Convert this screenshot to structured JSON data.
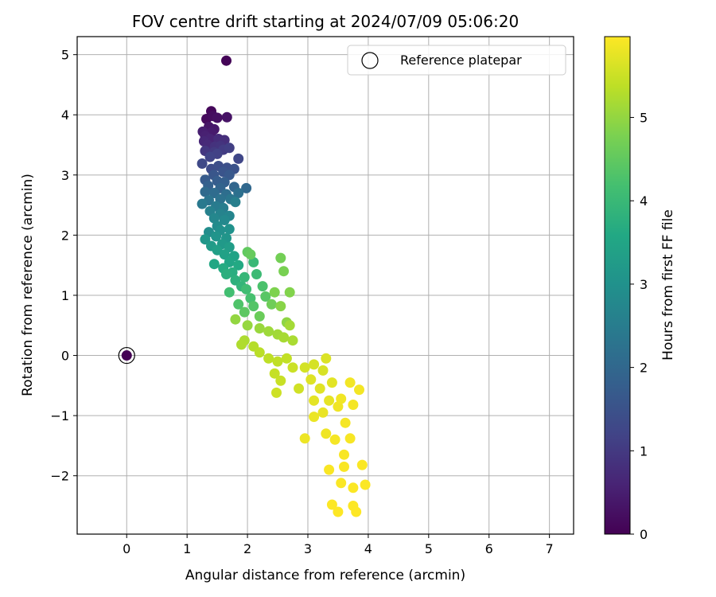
{
  "chart_data": {
    "type": "scatter",
    "title": "FOV centre drift starting at 2024/07/09 05:06:20",
    "xlabel": "Angular distance from reference (arcmin)",
    "ylabel": "Rotation from reference (arcmin)",
    "xlim": [
      -0.82,
      7.4
    ],
    "ylim": [
      -2.97,
      5.3
    ],
    "xticks": [
      0,
      1,
      2,
      3,
      4,
      5,
      6,
      7
    ],
    "yticks": [
      -2,
      -1,
      0,
      1,
      2,
      3,
      4,
      5
    ],
    "grid": true,
    "legend": {
      "position": "top-right",
      "entries": [
        "Reference platepar"
      ]
    },
    "colorbar": {
      "label": "Hours from first FF file",
      "colormap": "viridis",
      "range": [
        0,
        5.97
      ],
      "ticks": [
        0,
        1,
        2,
        3,
        4,
        5
      ]
    },
    "reference_point": {
      "x": 0,
      "y": 0,
      "hours": 0
    },
    "points": [
      [
        1.65,
        4.9,
        0.05
      ],
      [
        1.4,
        4.06,
        0.1
      ],
      [
        1.32,
        3.93,
        0.15
      ],
      [
        1.43,
        3.98,
        0.2
      ],
      [
        1.5,
        3.95,
        0.25
      ],
      [
        1.66,
        3.96,
        0.3
      ],
      [
        1.36,
        3.8,
        0.35
      ],
      [
        1.45,
        3.76,
        0.4
      ],
      [
        1.4,
        3.7,
        0.45
      ],
      [
        1.26,
        3.72,
        0.5
      ],
      [
        1.3,
        3.65,
        0.55
      ],
      [
        1.38,
        3.6,
        0.6
      ],
      [
        1.28,
        3.56,
        0.65
      ],
      [
        1.34,
        3.5,
        0.7
      ],
      [
        1.52,
        3.6,
        0.75
      ],
      [
        1.62,
        3.58,
        0.8
      ],
      [
        1.46,
        3.47,
        0.85
      ],
      [
        1.55,
        3.48,
        0.9
      ],
      [
        1.3,
        3.4,
        0.95
      ],
      [
        1.45,
        3.38,
        1.0
      ],
      [
        1.6,
        3.42,
        1.05
      ],
      [
        1.7,
        3.45,
        1.1
      ],
      [
        1.5,
        3.35,
        1.15
      ],
      [
        1.38,
        3.3,
        1.2
      ],
      [
        1.85,
        3.27,
        1.25
      ],
      [
        1.25,
        3.19,
        1.3
      ],
      [
        1.4,
        3.1,
        1.35
      ],
      [
        1.52,
        3.15,
        1.4
      ],
      [
        1.66,
        3.12,
        1.45
      ],
      [
        1.78,
        3.1,
        1.5
      ],
      [
        1.6,
        3.05,
        1.55
      ],
      [
        1.44,
        3.0,
        1.6
      ],
      [
        1.7,
        3.0,
        1.65
      ],
      [
        1.3,
        2.92,
        1.7
      ],
      [
        1.5,
        2.9,
        1.75
      ],
      [
        1.62,
        2.88,
        1.8
      ],
      [
        1.35,
        2.82,
        1.85
      ],
      [
        1.55,
        2.78,
        1.9
      ],
      [
        1.78,
        2.8,
        1.95
      ],
      [
        1.98,
        2.78,
        2.0
      ],
      [
        1.3,
        2.72,
        2.05
      ],
      [
        1.45,
        2.7,
        2.1
      ],
      [
        1.65,
        2.68,
        2.15
      ],
      [
        1.85,
        2.7,
        2.2
      ],
      [
        1.55,
        2.6,
        2.25
      ],
      [
        1.36,
        2.58,
        2.3
      ],
      [
        1.72,
        2.6,
        2.35
      ],
      [
        1.25,
        2.52,
        2.4
      ],
      [
        1.48,
        2.48,
        2.45
      ],
      [
        1.6,
        2.45,
        2.5
      ],
      [
        1.8,
        2.55,
        2.55
      ],
      [
        1.38,
        2.4,
        2.6
      ],
      [
        1.55,
        2.35,
        2.65
      ],
      [
        1.7,
        2.32,
        2.7
      ],
      [
        1.45,
        2.28,
        2.75
      ],
      [
        1.62,
        2.25,
        2.8
      ],
      [
        1.5,
        2.15,
        2.85
      ],
      [
        1.36,
        2.05,
        2.9
      ],
      [
        1.55,
        2.08,
        2.95
      ],
      [
        1.7,
        2.1,
        3.0
      ],
      [
        1.48,
        1.98,
        3.05
      ],
      [
        1.65,
        1.95,
        3.1
      ],
      [
        1.3,
        1.93,
        3.15
      ],
      [
        1.58,
        1.85,
        3.2
      ],
      [
        1.4,
        1.82,
        3.25
      ],
      [
        1.7,
        1.8,
        3.3
      ],
      [
        1.5,
        1.75,
        3.35
      ],
      [
        1.62,
        1.68,
        3.4
      ],
      [
        1.78,
        1.65,
        3.45
      ],
      [
        1.7,
        1.55,
        3.5
      ],
      [
        1.45,
        1.52,
        3.55
      ],
      [
        1.85,
        1.5,
        3.6
      ],
      [
        1.6,
        1.45,
        3.65
      ],
      [
        1.75,
        1.38,
        3.7
      ],
      [
        1.65,
        1.35,
        3.75
      ],
      [
        1.8,
        1.25,
        3.8
      ],
      [
        1.9,
        1.15,
        3.9
      ],
      [
        1.95,
        1.3,
        3.95
      ],
      [
        2.1,
        1.55,
        4.0
      ],
      [
        2.15,
        1.35,
        4.05
      ],
      [
        1.98,
        1.1,
        4.1
      ],
      [
        1.7,
        1.05,
        4.15
      ],
      [
        2.05,
        0.95,
        4.2
      ],
      [
        2.25,
        1.15,
        4.25
      ],
      [
        1.85,
        0.85,
        4.3
      ],
      [
        2.1,
        0.82,
        4.35
      ],
      [
        2.3,
        0.98,
        4.4
      ],
      [
        1.95,
        0.72,
        4.45
      ],
      [
        2.0,
        1.72,
        4.5
      ],
      [
        2.05,
        1.68,
        4.55
      ],
      [
        2.2,
        0.65,
        4.6
      ],
      [
        2.4,
        0.85,
        4.65
      ],
      [
        2.55,
        1.62,
        4.7
      ],
      [
        2.6,
        1.4,
        4.75
      ],
      [
        2.45,
        1.05,
        4.8
      ],
      [
        2.7,
        1.05,
        4.85
      ],
      [
        2.55,
        0.82,
        4.9
      ],
      [
        2.65,
        0.55,
        4.95
      ],
      [
        1.8,
        0.6,
        5.0
      ],
      [
        2.0,
        0.5,
        5.02
      ],
      [
        2.2,
        0.45,
        5.05
      ],
      [
        2.35,
        0.4,
        5.1
      ],
      [
        2.5,
        0.35,
        5.12
      ],
      [
        2.7,
        0.5,
        5.15
      ],
      [
        2.6,
        0.3,
        5.18
      ],
      [
        2.75,
        0.25,
        5.2
      ],
      [
        1.95,
        0.25,
        5.22
      ],
      [
        1.9,
        0.18,
        5.25
      ],
      [
        2.1,
        0.15,
        5.3
      ],
      [
        2.2,
        0.05,
        5.35
      ],
      [
        2.35,
        -0.05,
        5.38
      ],
      [
        2.5,
        -0.1,
        5.4
      ],
      [
        2.65,
        -0.05,
        5.42
      ],
      [
        2.45,
        -0.3,
        5.45
      ],
      [
        2.55,
        -0.42,
        5.48
      ],
      [
        2.75,
        -0.2,
        5.5
      ],
      [
        2.48,
        -0.62,
        5.52
      ],
      [
        2.85,
        -0.55,
        5.55
      ],
      [
        2.95,
        -0.2,
        5.58
      ],
      [
        3.1,
        -0.15,
        5.6
      ],
      [
        3.25,
        -0.25,
        5.62
      ],
      [
        3.3,
        -0.05,
        5.65
      ],
      [
        3.05,
        -0.4,
        5.68
      ],
      [
        3.2,
        -0.55,
        5.7
      ],
      [
        3.4,
        -0.45,
        5.72
      ],
      [
        3.1,
        -0.75,
        5.74
      ],
      [
        3.35,
        -0.75,
        5.76
      ],
      [
        3.25,
        -0.95,
        5.78
      ],
      [
        3.1,
        -1.02,
        5.8
      ],
      [
        2.95,
        -1.38,
        5.82
      ],
      [
        3.3,
        -1.3,
        5.84
      ],
      [
        3.5,
        -0.85,
        5.85
      ],
      [
        3.55,
        -0.72,
        5.86
      ],
      [
        3.7,
        -0.45,
        5.87
      ],
      [
        3.85,
        -0.57,
        5.88
      ],
      [
        3.75,
        -0.82,
        5.89
      ],
      [
        3.62,
        -1.12,
        5.9
      ],
      [
        3.45,
        -1.4,
        5.9
      ],
      [
        3.7,
        -1.38,
        5.91
      ],
      [
        3.6,
        -1.65,
        5.92
      ],
      [
        3.35,
        -1.9,
        5.93
      ],
      [
        3.6,
        -1.85,
        5.93
      ],
      [
        3.9,
        -1.82,
        5.94
      ],
      [
        3.55,
        -2.12,
        5.94
      ],
      [
        3.75,
        -2.2,
        5.95
      ],
      [
        3.95,
        -2.15,
        5.95
      ],
      [
        3.4,
        -2.48,
        5.96
      ],
      [
        3.75,
        -2.5,
        5.96
      ],
      [
        3.5,
        -2.6,
        5.97
      ],
      [
        3.8,
        -2.6,
        5.97
      ]
    ]
  }
}
